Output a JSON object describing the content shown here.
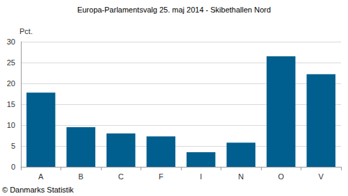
{
  "chart_data": {
    "type": "bar",
    "title": "Europa-Parlamentsvalg 25. maj 2014 - Skibethallen Nord",
    "ylabel": "Pct.",
    "annotation": "© Danmarks Statistik",
    "categories": [
      "A",
      "B",
      "C",
      "F",
      "I",
      "N",
      "O",
      "V"
    ],
    "values": [
      17.8,
      9.5,
      8.0,
      7.3,
      3.5,
      5.8,
      26.5,
      22.2
    ],
    "color": "#005f8f",
    "ylim": [
      0,
      30
    ],
    "yticks": [
      0,
      5,
      10,
      15,
      20,
      25,
      30
    ],
    "grid": true
  }
}
